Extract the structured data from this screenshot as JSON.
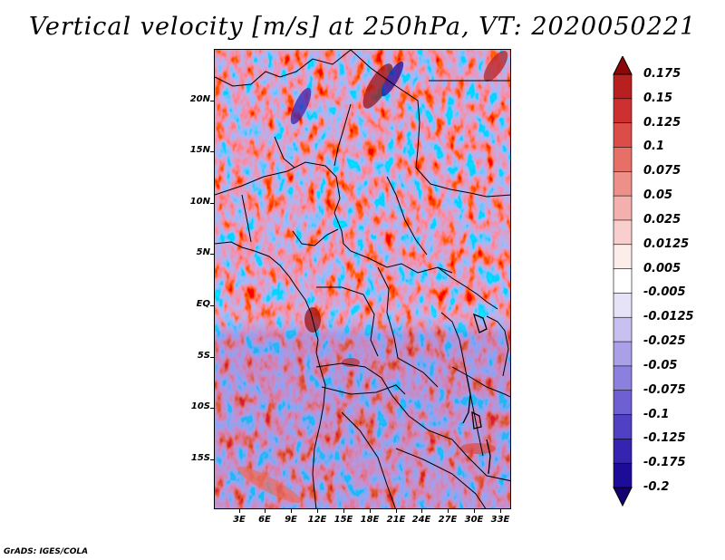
{
  "title": "Vertical velocity [m/s] at 250hPa, VT: 2020050221",
  "credit": "GrADS: IGES/COLA",
  "map": {
    "lat_labels": [
      "20N",
      "15N",
      "10N",
      "5N",
      "EQ",
      "5S",
      "10S",
      "15S"
    ],
    "lon_labels": [
      "3E",
      "6E",
      "9E",
      "12E",
      "15E",
      "18E",
      "21E",
      "24E",
      "27E",
      "30E",
      "33E"
    ],
    "lat_range": [
      -20,
      24
    ],
    "lon_range": [
      0,
      34
    ],
    "field": "vertical velocity",
    "units": "m/s",
    "level": "250hPa"
  },
  "colorbar": {
    "labels": [
      "0.175",
      "0.15",
      "0.125",
      "0.1",
      "0.075",
      "0.05",
      "0.025",
      "0.0125",
      "0.005",
      "-0.005",
      "-0.0125",
      "-0.025",
      "-0.05",
      "-0.075",
      "-0.1",
      "-0.125",
      "-0.175",
      "-0.2"
    ],
    "colors": [
      "#a01010",
      "#b82020",
      "#cc3030",
      "#dc4c48",
      "#e67068",
      "#ee908a",
      "#f4b0ac",
      "#f8cfcc",
      "#fcecea",
      "#ffffff",
      "#e6e2f8",
      "#c8c0f0",
      "#aaa0e8",
      "#8c80de",
      "#6e60d2",
      "#5040c4",
      "#3424b0",
      "#1c0c98",
      "#120084"
    ],
    "arrow_top_color": "#8c0808",
    "arrow_bottom_color": "#140070"
  }
}
